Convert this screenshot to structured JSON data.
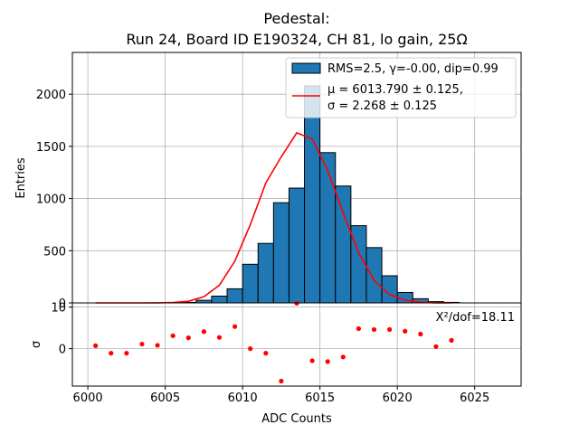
{
  "chart_data": {
    "type": "bar",
    "title": "Pedestal:",
    "subtitle": "Run 24, Board ID E190324, CH 81, lo gain, 25Ω",
    "xlabel": "ADC Counts",
    "ylabel": "Entries",
    "residual_ylabel": "σ",
    "grid": true,
    "legend_position": "top-right",
    "xlim": [
      5999,
      6028
    ],
    "ylim": [
      0,
      2400
    ],
    "residual_ylim": [
      -9,
      11
    ],
    "xticks": [
      "6000",
      "6005",
      "6010",
      "6015",
      "6020",
      "6025"
    ],
    "yticks": [
      "0",
      "500",
      "1000",
      "1500",
      "2000"
    ],
    "residual_yticks": [
      "0",
      "10"
    ],
    "colors": {
      "bars": "#1f77b4",
      "fit": "#ff0000",
      "residuals": "#ff0000"
    },
    "legend": [
      {
        "label": "RMS=2.5, γ=-0.00, dip=0.99",
        "marker": "bar"
      },
      {
        "label_line1": "μ = 6013.790 ± 0.125,",
        "label_line2": "σ = 2.268 ± 0.125",
        "marker": "line"
      }
    ],
    "annotation": "X²/dof=18.11",
    "histogram": {
      "bin_edges": [
        6006,
        6007,
        6008,
        6009,
        6010,
        6011,
        6012,
        6013,
        6014,
        6015,
        6016,
        6017,
        6018,
        6019,
        6020,
        6021,
        6022,
        6023,
        6024
      ],
      "counts": [
        5,
        25,
        65,
        135,
        370,
        570,
        960,
        1100,
        2080,
        1440,
        1120,
        740,
        530,
        260,
        100,
        40,
        12,
        5
      ]
    },
    "fit": {
      "x": [
        6000.5,
        6001.5,
        6002.5,
        6003.5,
        6004.5,
        6005.5,
        6006.5,
        6007.5,
        6008.5,
        6009.5,
        6010.5,
        6011.5,
        6012.5,
        6013.5,
        6014.5,
        6015.5,
        6016.5,
        6017.5,
        6018.5,
        6019.5,
        6020.5,
        6021.5,
        6022.5,
        6023.5
      ],
      "y": [
        0,
        0,
        0,
        0,
        1,
        4,
        16,
        60,
        170,
        400,
        750,
        1150,
        1400,
        1630,
        1570,
        1270,
        860,
        480,
        215,
        80,
        25,
        6,
        1,
        0
      ]
    },
    "residuals": {
      "x": [
        6000.5,
        6001.5,
        6002.5,
        6003.5,
        6004.5,
        6005.5,
        6006.5,
        6007.5,
        6008.5,
        6009.5,
        6010.5,
        6011.5,
        6012.5,
        6013.5,
        6014.5,
        6015.5,
        6016.5,
        6017.5,
        6018.5,
        6019.5,
        6020.5,
        6021.5,
        6022.5,
        6023.5
      ],
      "y": [
        0.7,
        -1.1,
        -1.1,
        1.1,
        0.8,
        3.1,
        2.6,
        4.1,
        2.7,
        5.3,
        0.0,
        -1.1,
        -7.8,
        10.9,
        -2.9,
        -3.1,
        -2.0,
        4.8,
        4.6,
        4.6,
        4.2,
        3.5,
        0.5,
        2.0
      ]
    }
  }
}
